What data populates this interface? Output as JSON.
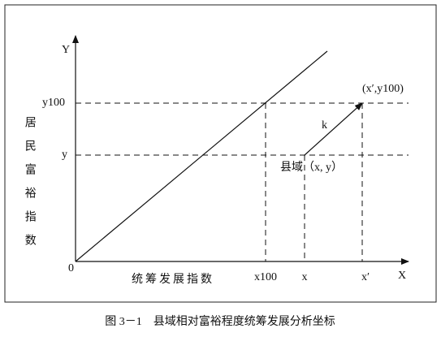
{
  "axes": {
    "y_symbol": "Y",
    "x_symbol": "X",
    "origin": "0",
    "y_title": "居民富裕指数",
    "x_title": "统筹发展指数"
  },
  "y_marks": {
    "upper": "y100",
    "lower": "y"
  },
  "x_marks": {
    "first": "x100",
    "second": "x",
    "third": "x′"
  },
  "labels": {
    "slope": "k",
    "target": "(x′,y100)",
    "county": "县域（x, y）"
  },
  "caption": "图 3－1　县域相对富裕程度统筹发展分析坐标"
}
